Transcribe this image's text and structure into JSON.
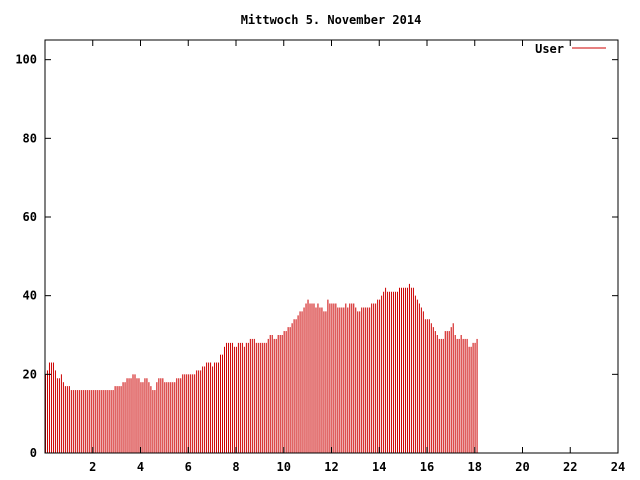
{
  "chart_data": {
    "type": "bar",
    "title": "Mittwoch 5. November 2014",
    "xlabel": "",
    "ylabel": "",
    "xlim": [
      0,
      24
    ],
    "ylim": [
      0,
      105
    ],
    "x_ticks": [
      2,
      4,
      6,
      8,
      10,
      12,
      14,
      16,
      18,
      20,
      22,
      24
    ],
    "y_ticks": [
      0,
      20,
      40,
      60,
      80,
      100
    ],
    "grid": false,
    "legend_position": "top-right",
    "colors": {
      "series": "#cc0000",
      "axis": "#000000",
      "background": "#ffffff"
    },
    "series": [
      {
        "name": "User",
        "x_start": 0,
        "x_step": 0.0833,
        "values": [
          20,
          21,
          23,
          23,
          23,
          21,
          19,
          19,
          20,
          18,
          17,
          17,
          17,
          16,
          16,
          16,
          16,
          16,
          16,
          16,
          16,
          16,
          16,
          16,
          16,
          16,
          16,
          16,
          16,
          16,
          16,
          16,
          16,
          16,
          16,
          17,
          17,
          17,
          17,
          18,
          18,
          19,
          19,
          19,
          20,
          20,
          19,
          19,
          18,
          18,
          19,
          19,
          18,
          17,
          16,
          16,
          18,
          19,
          19,
          19,
          18,
          18,
          18,
          18,
          18,
          18,
          19,
          19,
          19,
          20,
          20,
          20,
          20,
          20,
          20,
          20,
          21,
          21,
          21,
          22,
          22,
          23,
          23,
          23,
          22,
          23,
          23,
          23,
          25,
          25,
          27,
          28,
          28,
          28,
          28,
          27,
          27,
          28,
          28,
          28,
          27,
          28,
          28,
          29,
          29,
          29,
          28,
          28,
          28,
          28,
          28,
          28,
          29,
          30,
          30,
          29,
          29,
          30,
          30,
          30,
          31,
          31,
          32,
          32,
          33,
          34,
          34,
          35,
          36,
          36,
          37,
          38,
          39,
          38,
          38,
          38,
          37,
          38,
          37,
          37,
          36,
          36,
          39,
          38,
          38,
          38,
          38,
          37,
          37,
          37,
          37,
          38,
          37,
          38,
          38,
          38,
          37,
          36,
          36,
          37,
          37,
          37,
          37,
          37,
          38,
          38,
          38,
          39,
          39,
          40,
          41,
          42,
          41,
          41,
          41,
          41,
          41,
          41,
          42,
          42,
          42,
          42,
          42,
          43,
          42,
          42,
          40,
          39,
          38,
          37,
          36,
          34,
          34,
          34,
          33,
          32,
          31,
          30,
          29,
          29,
          29,
          31,
          31,
          31,
          32,
          33,
          30,
          29,
          29,
          30,
          29,
          29,
          29,
          27,
          27,
          28,
          28,
          29
        ]
      }
    ]
  }
}
